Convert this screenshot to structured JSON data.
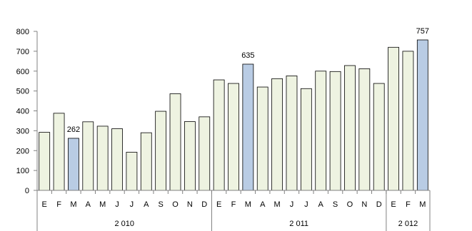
{
  "chart_data": {
    "type": "bar",
    "title": "",
    "xlabel": "",
    "ylabel": "",
    "ylim": [
      0,
      800
    ],
    "yticks": [
      0,
      100,
      200,
      300,
      400,
      500,
      600,
      700,
      800
    ],
    "grid": false,
    "legend": "none",
    "categories": [
      "E",
      "F",
      "M",
      "A",
      "M",
      "J",
      "J",
      "A",
      "S",
      "O",
      "N",
      "D",
      "E",
      "F",
      "M",
      "A",
      "M",
      "J",
      "J",
      "A",
      "S",
      "O",
      "N",
      "D",
      "E",
      "F",
      "M"
    ],
    "groups": [
      {
        "label": "2 010",
        "count": 12
      },
      {
        "label": "2 011",
        "count": 12
      },
      {
        "label": "2 012",
        "count": 3
      }
    ],
    "values": [
      292,
      388,
      262,
      345,
      323,
      310,
      192,
      290,
      398,
      486,
      346,
      370,
      556,
      538,
      635,
      520,
      562,
      576,
      512,
      600,
      598,
      628,
      612,
      538,
      720,
      700,
      757
    ],
    "highlighted": [
      2,
      14,
      26
    ],
    "data_labels": [
      {
        "index": 2,
        "text": "262"
      },
      {
        "index": 14,
        "text": "635"
      },
      {
        "index": 26,
        "text": "757"
      }
    ],
    "colors": {
      "bar": "#eef3e1",
      "bar_highlight": "#b9cce4",
      "bar_stroke": "#000000",
      "axis": "#808080"
    }
  }
}
